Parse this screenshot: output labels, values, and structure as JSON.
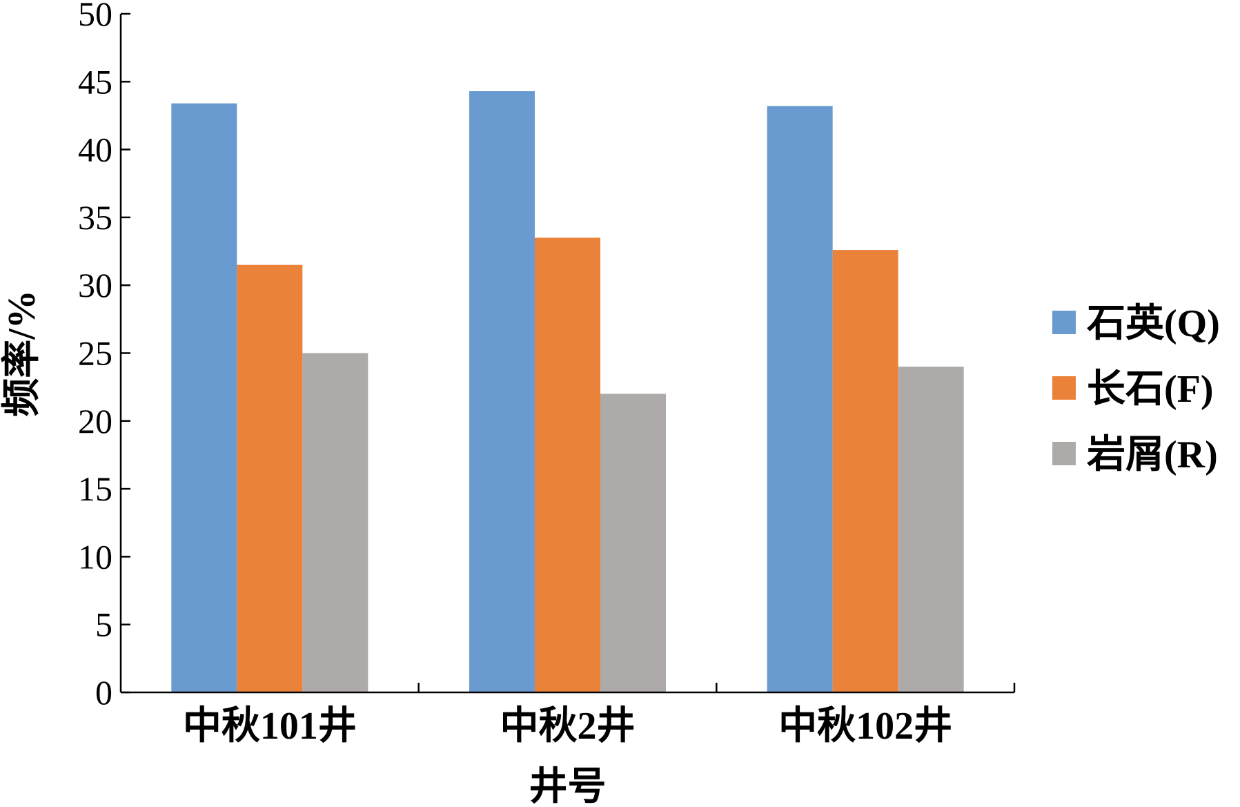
{
  "chart_data": {
    "type": "bar",
    "title": "",
    "xlabel": "井号",
    "ylabel": "频率/%",
    "ylim": [
      0,
      50
    ],
    "yticks": [
      0,
      5,
      10,
      15,
      20,
      25,
      30,
      35,
      40,
      45,
      50
    ],
    "categories": [
      "中秋101井",
      "中秋2井",
      "中秋102井"
    ],
    "series": [
      {
        "name": "石英(Q)",
        "color": "#6a9bd0",
        "values": [
          43.4,
          44.3,
          43.2
        ]
      },
      {
        "name": "长石(F)",
        "color": "#ea823a",
        "values": [
          31.5,
          33.5,
          32.6
        ]
      },
      {
        "name": "岩屑(R)",
        "color": "#afaaaa",
        "values": [
          25.0,
          22.0,
          24.0
        ]
      }
    ],
    "legend_position": "right",
    "grid": false
  }
}
